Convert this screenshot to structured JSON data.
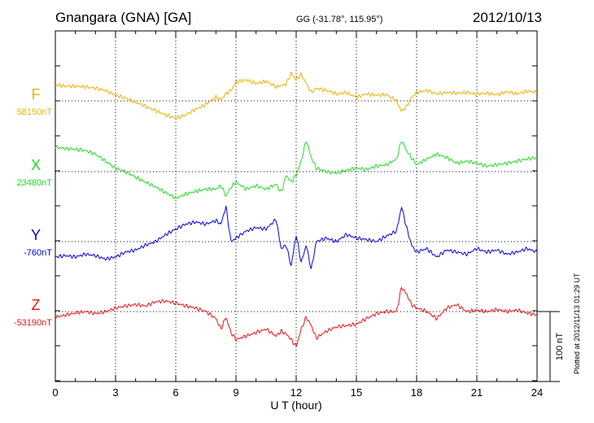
{
  "header": {
    "station": "Gnangara (GNA)  [GA]",
    "coords": "GG (-31.78°, 115.95°)",
    "date": "2012/10/13"
  },
  "footer": {
    "plotted": "Plotted at 2012/11/13 01:29 UT"
  },
  "chart_data": {
    "type": "line",
    "xlabel": "U T (hour)",
    "xlim": [
      0,
      24
    ],
    "xticks": [
      0,
      3,
      6,
      9,
      12,
      15,
      18,
      21,
      24
    ],
    "scale_label": "100 nT",
    "scale_nt": 100,
    "grid": "dotted",
    "series": [
      {
        "name": "F",
        "baseline_label": "58150nT",
        "baseline": 58150,
        "color": "#f0b000",
        "x": [
          0,
          0.5,
          1,
          1.5,
          2,
          2.5,
          3,
          3.5,
          4,
          4.5,
          5,
          5.5,
          6,
          6.5,
          7,
          7.5,
          8,
          8.25,
          8.5,
          8.75,
          9,
          9.5,
          10,
          10.5,
          11,
          11.5,
          11.75,
          12,
          12.25,
          12.5,
          12.75,
          13,
          13.5,
          14,
          14.5,
          15,
          15.5,
          16,
          16.5,
          17,
          17.25,
          17.5,
          17.75,
          18,
          18.5,
          19,
          19.5,
          20,
          20.5,
          21,
          21.5,
          22,
          22.5,
          23,
          23.5,
          24
        ],
        "y": [
          23,
          21,
          21,
          20,
          18,
          15,
          8,
          4,
          -2,
          -8,
          -14,
          -20,
          -25,
          -20,
          -12,
          -5,
          5,
          2,
          10,
          15,
          27,
          30,
          25,
          28,
          20,
          24,
          40,
          30,
          38,
          25,
          12,
          18,
          15,
          10,
          12,
          5,
          10,
          8,
          9,
          0,
          -15,
          -8,
          5,
          12,
          15,
          10,
          12,
          11,
          12,
          10,
          11,
          9,
          13,
          10,
          14,
          12
        ]
      },
      {
        "name": "X",
        "baseline_label": "23480nT",
        "baseline": 23480,
        "color": "#22dd22",
        "x": [
          0,
          0.5,
          1,
          1.5,
          2,
          2.5,
          3,
          3.5,
          4,
          4.5,
          5,
          5.5,
          6,
          6.5,
          7,
          7.5,
          8,
          8.25,
          8.5,
          8.75,
          9,
          9.5,
          10,
          10.5,
          11,
          11.25,
          11.5,
          11.75,
          12,
          12.25,
          12.5,
          12.75,
          13,
          13.5,
          14,
          14.5,
          15,
          15.5,
          16,
          16.5,
          17,
          17.25,
          17.5,
          17.75,
          18,
          18.5,
          19,
          19.5,
          20,
          20.5,
          21,
          21.5,
          22,
          22.5,
          23,
          23.5,
          24
        ],
        "y": [
          35,
          33,
          32,
          30,
          25,
          15,
          5,
          0,
          -8,
          -15,
          -22,
          -30,
          -38,
          -32,
          -28,
          -25,
          -25,
          -20,
          -35,
          -22,
          -15,
          -25,
          -20,
          -25,
          -18,
          -30,
          -5,
          -15,
          -5,
          15,
          45,
          20,
          5,
          0,
          -2,
          2,
          5,
          3,
          8,
          10,
          18,
          45,
          30,
          20,
          10,
          18,
          25,
          20,
          12,
          15,
          12,
          8,
          10,
          12,
          15,
          18,
          20
        ]
      },
      {
        "name": "Y",
        "baseline_label": "-760nT",
        "baseline": -760,
        "color": "#0000dd",
        "x": [
          0,
          0.5,
          1,
          1.5,
          2,
          2.5,
          3,
          3.5,
          4,
          4.5,
          5,
          5.5,
          6,
          6.5,
          7,
          7.5,
          8,
          8.25,
          8.5,
          8.75,
          9,
          9.5,
          10,
          10.5,
          11,
          11.25,
          11.5,
          11.75,
          12,
          12.25,
          12.5,
          12.75,
          13,
          13.5,
          14,
          14.5,
          15,
          15.5,
          16,
          16.5,
          17,
          17.25,
          17.5,
          17.75,
          18,
          18.5,
          19,
          19.5,
          20,
          20.5,
          21,
          21.5,
          22,
          22.5,
          23,
          23.5,
          24
        ],
        "y": [
          -22,
          -20,
          -22,
          -18,
          -20,
          -25,
          -22,
          -15,
          -12,
          -5,
          0,
          10,
          18,
          25,
          28,
          25,
          30,
          25,
          50,
          0,
          5,
          15,
          20,
          18,
          32,
          -10,
          -5,
          -35,
          10,
          -30,
          -5,
          -40,
          0,
          5,
          0,
          10,
          5,
          3,
          0,
          8,
          15,
          50,
          20,
          -5,
          -15,
          -10,
          -22,
          -12,
          -15,
          -18,
          -10,
          -15,
          -12,
          -18,
          -15,
          -10,
          -15
        ]
      },
      {
        "name": "Z",
        "baseline_label": "-53190nT",
        "baseline": -53190,
        "color": "#ee1111",
        "x": [
          0,
          0.5,
          1,
          1.5,
          2,
          2.5,
          3,
          3.5,
          4,
          4.5,
          5,
          5.5,
          6,
          6.5,
          7,
          7.5,
          8,
          8.25,
          8.5,
          8.75,
          9,
          9.5,
          10,
          10.5,
          11,
          11.25,
          11.5,
          11.75,
          12,
          12.25,
          12.5,
          12.75,
          13,
          13.5,
          14,
          14.5,
          15,
          15.5,
          16,
          16.5,
          17,
          17.25,
          17.5,
          17.75,
          18,
          18.5,
          19,
          19.5,
          20,
          20.5,
          21,
          21.5,
          22,
          22.5,
          23,
          23.5,
          24
        ],
        "y": [
          -8,
          -5,
          -2,
          0,
          -3,
          0,
          5,
          8,
          10,
          8,
          14,
          15,
          12,
          8,
          5,
          0,
          -10,
          -25,
          -8,
          -30,
          -40,
          -35,
          -30,
          -25,
          -35,
          -28,
          -32,
          -40,
          -50,
          -25,
          -8,
          -20,
          -38,
          -28,
          -22,
          -20,
          -18,
          -10,
          -3,
          0,
          0,
          35,
          25,
          10,
          5,
          0,
          -10,
          5,
          10,
          0,
          2,
          0,
          3,
          0,
          2,
          -2,
          -5
        ]
      }
    ]
  }
}
